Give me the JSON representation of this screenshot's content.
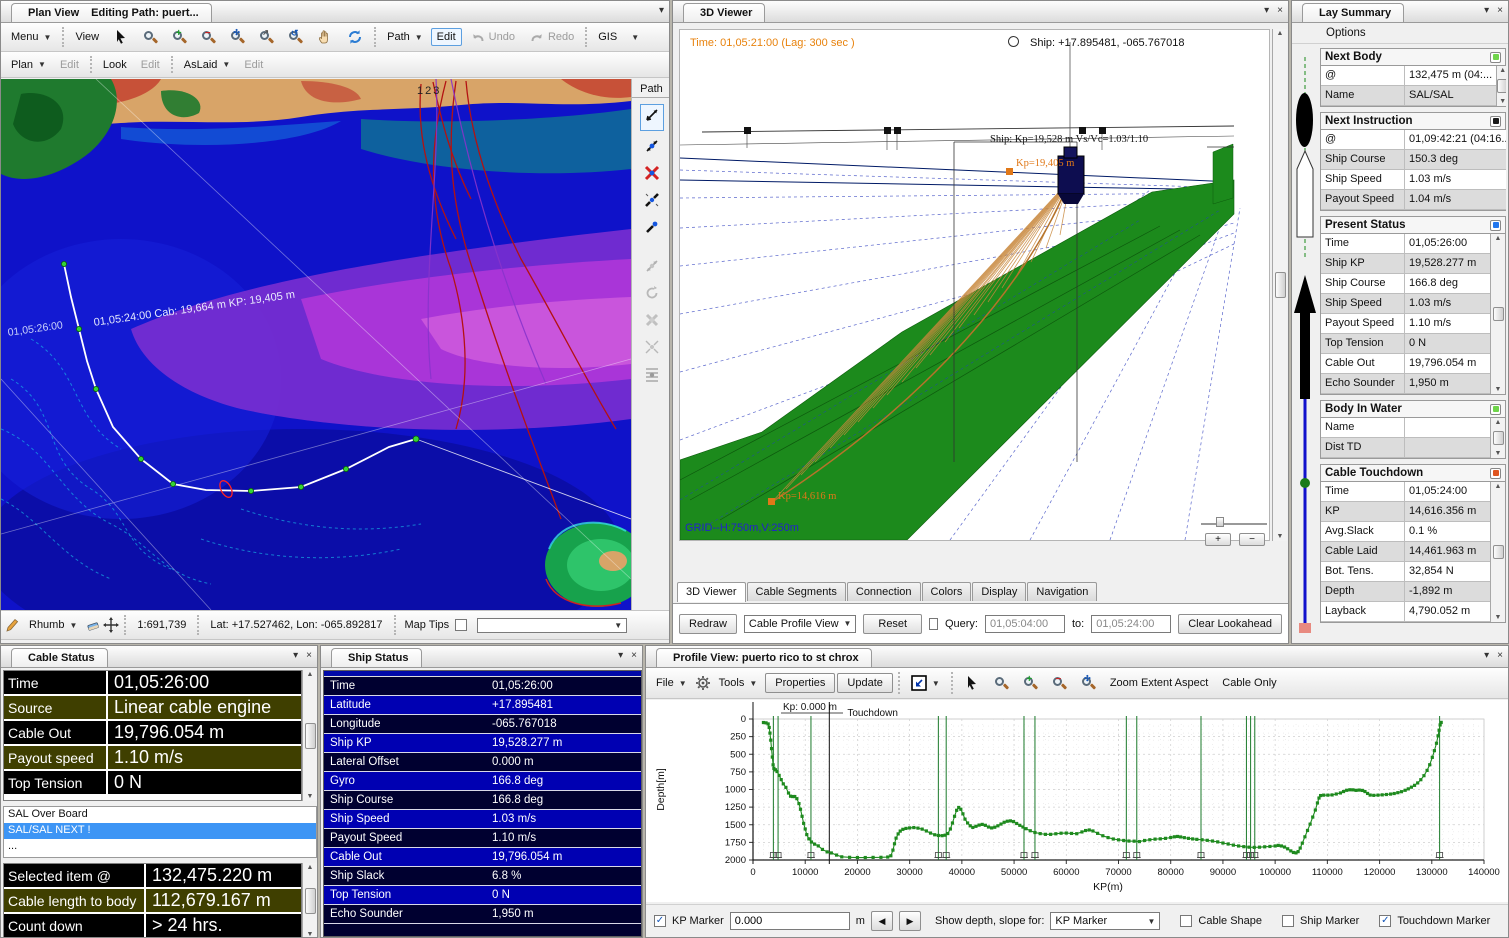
{
  "colors": {
    "accent_orange": "#e8820c",
    "selection_blue": "#3d95f5",
    "cable_row_olive": "#3f3f00",
    "ship_row_navy": "#000030",
    "ship_row_blue": "#0000b2",
    "profile_green": "#1e8a1e",
    "map_deep_blue": "#0f12c9",
    "cable_orange": "#c8883c"
  },
  "plan_view": {
    "tab_title": "Plan View",
    "tab_path": "Editing Path: puert...",
    "menus": {
      "menu": "Menu",
      "view": "View",
      "path": "Path",
      "edit": "Edit",
      "undo": "Undo",
      "redo": "Redo",
      "gis": "GIS",
      "plan": "Plan",
      "plan_edit": "Edit",
      "look": "Look",
      "look_edit": "Edit",
      "aslaid": "AsLaid",
      "aslaid_edit": "Edit"
    },
    "map_labels": {
      "track_annotation": "01,05:24:00 Cab: 19,664 m KP: 19,405 m",
      "time_annotation": "01,05:26:00",
      "route_number": "123"
    },
    "path_toolbar_title": "Path",
    "statusbar": {
      "mode": "Rhumb",
      "scale": "1:691,739",
      "position": "Lat: +17.527462, Lon: -065.892817",
      "map_tips": "Map Tips"
    }
  },
  "viewer3d": {
    "tab_title": "3D Viewer",
    "time_label": "Time: 01,05:21:00 (Lag: 300 sec )",
    "ship_position": "Ship: +17.895481, -065.767018",
    "ship_annotation": "Ship: Kp=19,528 m Vs/Vc=1.03/1.10",
    "ship_kp_label": "Kp=19,405 m",
    "touchdown_label": "Kp=14,616 m",
    "grid_label": "GRID--H:750m,V:250m",
    "tabs": [
      "3D Viewer",
      "Cable Segments",
      "Connection",
      "Colors",
      "Display",
      "Navigation"
    ],
    "controls": {
      "redraw": "Redraw",
      "view_select": "Cable Profile View",
      "reset": "Reset",
      "query_label": "Query:",
      "query_from": "01,05:04:00",
      "to_label": "to:",
      "query_to": "01,05:24:00",
      "clear_lookahead": "Clear Lookahead"
    }
  },
  "lay_summary": {
    "tab_title": "Lay Summary",
    "options_menu": "Options",
    "sections": [
      {
        "title": "Next Body",
        "indicator": "#6fd44a",
        "scroll": true,
        "rows": [
          [
            "@",
            "132,475 m (04:..."
          ],
          [
            "Name",
            "SAL/SAL"
          ]
        ]
      },
      {
        "title": "Next Instruction",
        "indicator": "#1a1a1a",
        "scroll": false,
        "rows": [
          [
            "@",
            "01,09:42:21 (04:16..."
          ],
          [
            "Ship Course",
            "150.3  deg"
          ],
          [
            "Ship Speed",
            "1.03 m/s"
          ],
          [
            "Payout Speed",
            "1.04 m/s"
          ]
        ]
      },
      {
        "title": "Present Status",
        "indicator": "#2277ee",
        "scroll": true,
        "rows": [
          [
            "Time",
            "01,05:26:00"
          ],
          [
            "Ship KP",
            "19,528.277 m"
          ],
          [
            "Ship Course",
            "166.8 deg"
          ],
          [
            "Ship Speed",
            "1.03 m/s"
          ],
          [
            "Payout Speed",
            "1.10 m/s"
          ],
          [
            "Top Tension",
            "0 N"
          ],
          [
            "Cable Out",
            "19,796.054 m"
          ],
          [
            "Echo Sounder",
            "1,950 m"
          ]
        ]
      },
      {
        "title": "Body In Water",
        "indicator": "#6fd44a",
        "scroll": true,
        "rows": [
          [
            "Name",
            ""
          ],
          [
            "Dist TD",
            ""
          ]
        ]
      },
      {
        "title": "Cable Touchdown",
        "indicator": "#e05520",
        "scroll": true,
        "rows": [
          [
            "Time",
            "01,05:24:00"
          ],
          [
            "KP",
            "14,616.356 m"
          ],
          [
            "Avg.Slack",
            "0.1 %"
          ],
          [
            "Cable Laid",
            "14,461.963 m"
          ],
          [
            "Bot. Tens.",
            "32,854 N"
          ],
          [
            "Depth",
            "-1,892 m"
          ],
          [
            "Layback",
            "4,790.052 m"
          ]
        ]
      }
    ]
  },
  "cable_status": {
    "tab_title": "Cable Status",
    "rows": [
      [
        "Time",
        "01,05:26:00"
      ],
      [
        "Source",
        "Linear cable engine"
      ],
      [
        "Cable Out",
        "19,796.054 m"
      ],
      [
        "Payout speed",
        "1.10 m/s"
      ],
      [
        "Top Tension",
        "0 N"
      ]
    ],
    "events": [
      "SAL Over Board",
      "SAL/SAL  NEXT !",
      "..."
    ],
    "selected_rows": [
      [
        "Selected item @",
        "132,475.220 m"
      ],
      [
        "Cable length to body",
        "112,679.167 m"
      ],
      [
        "Count down",
        "> 24 hrs."
      ]
    ]
  },
  "ship_status": {
    "tab_title": "Ship Status",
    "rows": [
      [
        "Time",
        "01,05:26:00"
      ],
      [
        "Latitude",
        "+17.895481"
      ],
      [
        "Longitude",
        "-065.767018"
      ],
      [
        "Ship KP",
        "19,528.277 m"
      ],
      [
        "Lateral Offset",
        "0.000 m"
      ],
      [
        "Gyro",
        "166.8 deg"
      ],
      [
        "Ship Course",
        "166.8 deg"
      ],
      [
        "Ship Speed",
        "1.03 m/s"
      ],
      [
        "Payout Speed",
        "1.10 m/s"
      ],
      [
        "Cable Out",
        "19,796.054 m"
      ],
      [
        "Ship Slack",
        "6.8 %"
      ],
      [
        "Top Tension",
        "0 N"
      ],
      [
        "Echo Sounder",
        "1,950 m"
      ]
    ]
  },
  "profile_view": {
    "tab_title": "Profile View: puerto rico to st chrox",
    "toolbar": {
      "file": "File",
      "tools": "Tools",
      "properties": "Properties",
      "update": "Update",
      "zoom_extent": "Zoom Extent Aspect",
      "cable_only": "Cable Only"
    },
    "controls": {
      "kp_marker": "KP Marker",
      "kp_value": "0.000",
      "unit": "m",
      "show_for": "Show depth, slope for:",
      "show_selected": "KP Marker",
      "cable_shape": "Cable Shape",
      "ship_marker": "Ship Marker",
      "touchdown_marker": "Touchdown Marker"
    }
  },
  "chart_data": {
    "type": "line",
    "title": "",
    "xlabel": "KP(m)",
    "ylabel": "Depth[m]",
    "xlim": [
      0,
      140000
    ],
    "ylim": [
      0,
      2000
    ],
    "y_inverted": true,
    "grid": true,
    "legend": "none",
    "x_ticks": [
      0,
      10000,
      20000,
      30000,
      40000,
      50000,
      60000,
      70000,
      80000,
      90000,
      100000,
      110000,
      120000,
      130000,
      140000
    ],
    "y_ticks": [
      0,
      250,
      500,
      750,
      1000,
      1250,
      1500,
      1750,
      2000
    ],
    "kp_marker": {
      "label": "Kp: 0.000 m",
      "x": 0
    },
    "touchdown_marker": {
      "label": "Touchdown",
      "x": 14616
    },
    "event_lines": [
      3900,
      4800,
      11100,
      35500,
      37000,
      51900,
      54000,
      71500,
      73500,
      85800,
      94500,
      95300,
      96100,
      131500
    ],
    "series": [
      {
        "name": "Seafloor depth profile",
        "color": "#1e8a1e",
        "points": [
          [
            2000,
            50
          ],
          [
            2500,
            55
          ],
          [
            2900,
            70
          ],
          [
            3100,
            120
          ],
          [
            3250,
            200
          ],
          [
            3400,
            300
          ],
          [
            3550,
            420
          ],
          [
            3700,
            540
          ],
          [
            3850,
            650
          ],
          [
            4000,
            700
          ],
          [
            4300,
            720
          ],
          [
            4600,
            745
          ],
          [
            5000,
            800
          ],
          [
            5400,
            860
          ],
          [
            5800,
            920
          ],
          [
            6300,
            970
          ],
          [
            6800,
            1050
          ],
          [
            7200,
            1095
          ],
          [
            7600,
            1100
          ],
          [
            8000,
            1100
          ],
          [
            8400,
            1130
          ],
          [
            8800,
            1200
          ],
          [
            9100,
            1280
          ],
          [
            9400,
            1380
          ],
          [
            9700,
            1480
          ],
          [
            10000,
            1560
          ],
          [
            10300,
            1640
          ],
          [
            10700,
            1700
          ],
          [
            11200,
            1745
          ],
          [
            11800,
            1775
          ],
          [
            12500,
            1800
          ],
          [
            13300,
            1850
          ],
          [
            14200,
            1885
          ],
          [
            15000,
            1900
          ],
          [
            16000,
            1930
          ],
          [
            17000,
            1955
          ],
          [
            18500,
            1962
          ],
          [
            20000,
            1965
          ],
          [
            21500,
            1965
          ],
          [
            23000,
            1963
          ],
          [
            24500,
            1962
          ],
          [
            25800,
            1958
          ],
          [
            26400,
            1940
          ],
          [
            26800,
            1860
          ],
          [
            27100,
            1770
          ],
          [
            27400,
            1690
          ],
          [
            27800,
            1630
          ],
          [
            28200,
            1590
          ],
          [
            28700,
            1565
          ],
          [
            29300,
            1552
          ],
          [
            30000,
            1545
          ],
          [
            30800,
            1540
          ],
          [
            31600,
            1548
          ],
          [
            32400,
            1562
          ],
          [
            33200,
            1588
          ],
          [
            34000,
            1618
          ],
          [
            34800,
            1642
          ],
          [
            35500,
            1652
          ],
          [
            36200,
            1655
          ],
          [
            36800,
            1648
          ],
          [
            37300,
            1625
          ],
          [
            37800,
            1560
          ],
          [
            38200,
            1475
          ],
          [
            38600,
            1380
          ],
          [
            39000,
            1295
          ],
          [
            39400,
            1255
          ],
          [
            39800,
            1280
          ],
          [
            40200,
            1345
          ],
          [
            40600,
            1420
          ],
          [
            41100,
            1475
          ],
          [
            41600,
            1515
          ],
          [
            42100,
            1538
          ],
          [
            42700,
            1522
          ],
          [
            43300,
            1505
          ],
          [
            43900,
            1495
          ],
          [
            44500,
            1508
          ],
          [
            45100,
            1532
          ],
          [
            45700,
            1545
          ],
          [
            46300,
            1535
          ],
          [
            46900,
            1515
          ],
          [
            47500,
            1490
          ],
          [
            48100,
            1465
          ],
          [
            48700,
            1450
          ],
          [
            49300,
            1445
          ],
          [
            49900,
            1456
          ],
          [
            50500,
            1482
          ],
          [
            51100,
            1508
          ],
          [
            51700,
            1532
          ],
          [
            52300,
            1556
          ],
          [
            53100,
            1585
          ],
          [
            54000,
            1610
          ],
          [
            55000,
            1626
          ],
          [
            56000,
            1636
          ],
          [
            57000,
            1636
          ],
          [
            58000,
            1628
          ],
          [
            59000,
            1620
          ],
          [
            60000,
            1618
          ],
          [
            61000,
            1623
          ],
          [
            62000,
            1627
          ],
          [
            63000,
            1602
          ],
          [
            63700,
            1582
          ],
          [
            64400,
            1574
          ],
          [
            65100,
            1588
          ],
          [
            66000,
            1622
          ],
          [
            67000,
            1656
          ],
          [
            68000,
            1682
          ],
          [
            69000,
            1702
          ],
          [
            70000,
            1714
          ],
          [
            71000,
            1723
          ],
          [
            72000,
            1731
          ],
          [
            73000,
            1733
          ],
          [
            74000,
            1739
          ],
          [
            75000,
            1723
          ],
          [
            76000,
            1713
          ],
          [
            77000,
            1704
          ],
          [
            78000,
            1700
          ],
          [
            79000,
            1693
          ],
          [
            80000,
            1681
          ],
          [
            80700,
            1671
          ],
          [
            81300,
            1666
          ],
          [
            81900,
            1673
          ],
          [
            82600,
            1683
          ],
          [
            83400,
            1693
          ],
          [
            84200,
            1701
          ],
          [
            85000,
            1707
          ],
          [
            86000,
            1713
          ],
          [
            87000,
            1721
          ],
          [
            88000,
            1731
          ],
          [
            89000,
            1743
          ],
          [
            90000,
            1759
          ],
          [
            91000,
            1773
          ],
          [
            92000,
            1789
          ],
          [
            93000,
            1801
          ],
          [
            94000,
            1811
          ],
          [
            95000,
            1818
          ],
          [
            96000,
            1821
          ],
          [
            97000,
            1818
          ],
          [
            98000,
            1813
          ],
          [
            99000,
            1808
          ],
          [
            100000,
            1801
          ],
          [
            100600,
            1793
          ],
          [
            101200,
            1801
          ],
          [
            101800,
            1816
          ],
          [
            102400,
            1841
          ],
          [
            103000,
            1871
          ],
          [
            103500,
            1893
          ],
          [
            104000,
            1899
          ],
          [
            104400,
            1881
          ],
          [
            104800,
            1831
          ],
          [
            105200,
            1761
          ],
          [
            105700,
            1671
          ],
          [
            106200,
            1581
          ],
          [
            106700,
            1491
          ],
          [
            107200,
            1391
          ],
          [
            107700,
            1291
          ],
          [
            108100,
            1191
          ],
          [
            108400,
            1121
          ],
          [
            108700,
            1086
          ],
          [
            109300,
            1080
          ],
          [
            110100,
            1080
          ],
          [
            110900,
            1077
          ],
          [
            111700,
            1064
          ],
          [
            112500,
            1049
          ],
          [
            113100,
            1029
          ],
          [
            113700,
            1011
          ],
          [
            114300,
            1004
          ],
          [
            114900,
            1005
          ],
          [
            115500,
            1012
          ],
          [
            116100,
            1008
          ],
          [
            116700,
            1013
          ],
          [
            117200,
            1029
          ],
          [
            117700,
            1056
          ],
          [
            118200,
            1079
          ],
          [
            118900,
            1083
          ],
          [
            119700,
            1080
          ],
          [
            120500,
            1076
          ],
          [
            121300,
            1071
          ],
          [
            122100,
            1065
          ],
          [
            122800,
            1057
          ],
          [
            123500,
            1045
          ],
          [
            124200,
            1031
          ],
          [
            124900,
            1011
          ],
          [
            125500,
            991
          ],
          [
            126100,
            967
          ],
          [
            126700,
            941
          ],
          [
            127300,
            907
          ],
          [
            127900,
            861
          ],
          [
            128500,
            804
          ],
          [
            129100,
            729
          ],
          [
            129600,
            649
          ],
          [
            130100,
            544
          ],
          [
            130500,
            449
          ],
          [
            130900,
            344
          ],
          [
            131200,
            239
          ],
          [
            131400,
            159
          ],
          [
            131600,
            84
          ],
          [
            131800,
            48
          ]
        ]
      }
    ]
  }
}
